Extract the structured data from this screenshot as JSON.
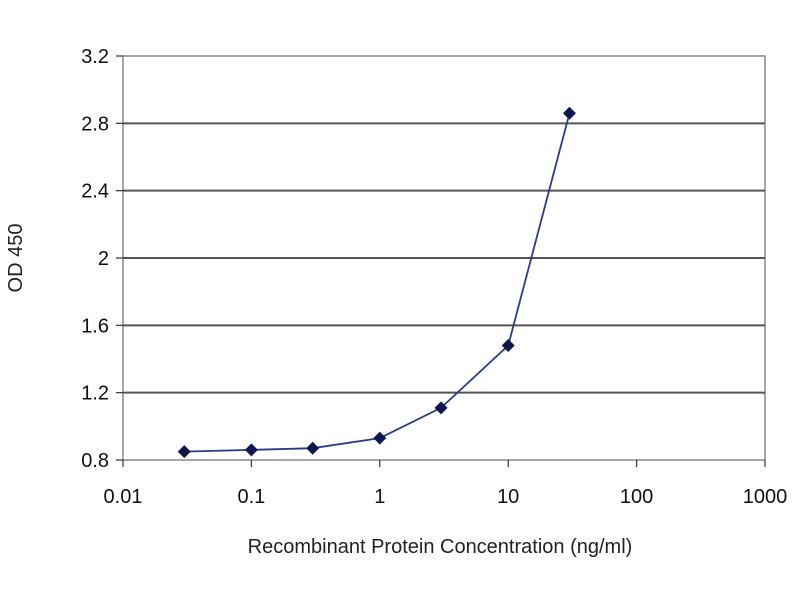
{
  "chart_data": {
    "type": "line",
    "title": "",
    "xlabel": "Recombinant Protein Concentration (ng/ml)",
    "ylabel": "OD 450",
    "x_scale": "log",
    "xlim": [
      0.01,
      1000
    ],
    "ylim": [
      0.8,
      3.2
    ],
    "x_ticks": [
      "0.01",
      "0.1",
      "1",
      "10",
      "100",
      "1000"
    ],
    "y_ticks": [
      "0.8",
      "1.2",
      "1.6",
      "2",
      "2.4",
      "2.8",
      "3.2"
    ],
    "grid": "horizontal",
    "legend": "none",
    "series": [
      {
        "x": [
          0.03,
          0.1,
          0.3,
          1,
          3,
          10,
          30
        ],
        "y": [
          0.85,
          0.86,
          0.87,
          0.93,
          1.11,
          1.48,
          2.86
        ],
        "color": "#2b3a8a"
      }
    ]
  }
}
